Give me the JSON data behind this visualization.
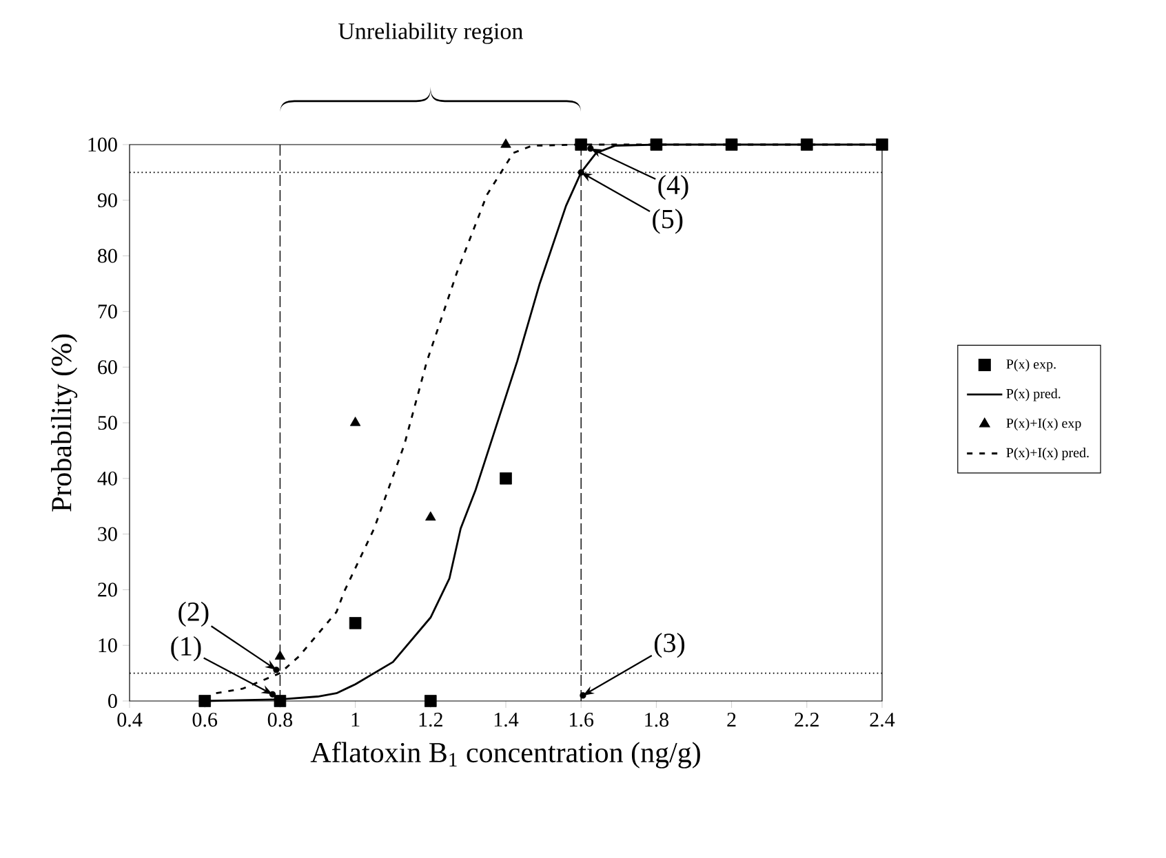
{
  "chart_data": {
    "type": "line",
    "xlabel": "Aflatoxin B$_{1}$ concentration (ng/g)",
    "ylabel": "Probability (%)",
    "xlim": [
      0.4,
      2.4
    ],
    "ylim": [
      0,
      100
    ],
    "xticks": [
      0.4,
      0.6,
      0.8,
      1,
      1.2,
      1.4,
      1.6,
      1.8,
      2,
      2.2,
      2.4
    ],
    "yticks": [
      0,
      10,
      20,
      30,
      40,
      50,
      60,
      70,
      80,
      90,
      100
    ],
    "grid": false,
    "legend": "right",
    "series": [
      {
        "name": "P(x) exp.",
        "type": "scatter",
        "marker": "square",
        "color": "#000000",
        "x": [
          0.6,
          0.8,
          1.0,
          1.2,
          1.4,
          1.6,
          1.8,
          2.0,
          2.2,
          2.4
        ],
        "values": [
          0,
          0,
          14,
          0,
          40,
          100,
          100,
          100,
          100,
          100
        ]
      },
      {
        "name": "P(x) pred.",
        "type": "line",
        "line_style": "solid",
        "color": "#000000",
        "x": [
          0.6,
          0.8,
          0.9,
          0.95,
          1.0,
          1.1,
          1.2,
          1.25,
          1.28,
          1.32,
          1.43,
          1.49,
          1.56,
          1.6,
          1.64,
          1.69,
          1.8,
          2.0,
          2.2,
          2.4
        ],
        "values": [
          0,
          0.3,
          0.8,
          1.4,
          3,
          7,
          15,
          22,
          31,
          38,
          61,
          75,
          89,
          95,
          98.5,
          99.8,
          100,
          100,
          100,
          100
        ]
      },
      {
        "name": "P(x)+I(x) exp",
        "type": "scatter",
        "marker": "triangle",
        "color": "#000000",
        "x": [
          0.8,
          1.0,
          1.2,
          1.4
        ],
        "values": [
          8,
          50,
          33,
          100
        ]
      },
      {
        "name": "P(x)+I(x) pred.",
        "type": "line",
        "line_style": "dashed",
        "color": "#000000",
        "x": [
          0.63,
          0.7,
          0.8,
          0.85,
          0.95,
          0.97,
          1.05,
          1.13,
          1.19,
          1.27,
          1.35,
          1.42,
          1.47,
          1.6,
          1.8,
          2.0,
          2.2,
          2.4
        ],
        "values": [
          1.4,
          2.2,
          5,
          8,
          16,
          19.6,
          31,
          46,
          61,
          77,
          91,
          98.5,
          99.8,
          100,
          100,
          100,
          100,
          100
        ]
      }
    ],
    "ref_lines": [
      {
        "axis": "y",
        "value": 95,
        "line_style": "dotted"
      },
      {
        "axis": "y",
        "value": 5,
        "line_style": "dotted"
      },
      {
        "axis": "x",
        "value": 0.8,
        "line_style": "dashed"
      },
      {
        "axis": "x",
        "value": 1.6,
        "line_style": "dashed"
      }
    ],
    "annotations": [
      "Unreliability region",
      {
        "text": "(1)",
        "x": 0.78,
        "y": 1.2
      },
      {
        "text": "(2)",
        "x": 0.79,
        "y": 5.6
      },
      {
        "text": "(3)",
        "x": 1.605,
        "y": 1
      },
      {
        "text": "(4)",
        "x": 1.625,
        "y": 99.3
      },
      {
        "text": "(5)",
        "x": 1.6,
        "y": 95
      }
    ]
  }
}
